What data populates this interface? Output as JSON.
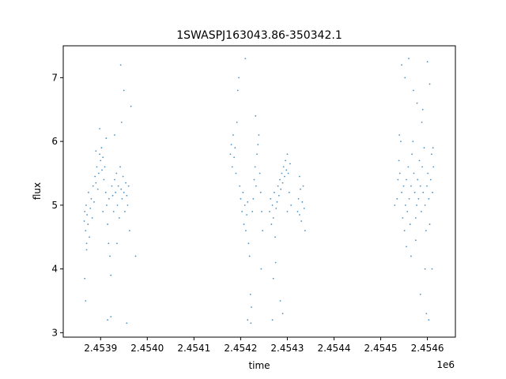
{
  "chart_data": {
    "type": "scatter",
    "title": "1SWASPJ163043.86-350342.1",
    "xlabel": "time",
    "ylabel": "flux",
    "x_offset_label": "1e6",
    "x_scale": 1000000,
    "xlim": [
      2453820,
      2454660
    ],
    "ylim": [
      2.93,
      7.5
    ],
    "xticks": [
      2453900,
      2454000,
      2454100,
      2454200,
      2454300,
      2454400,
      2454500,
      2454600
    ],
    "xtick_labels": [
      "2.4539",
      "2.4540",
      "2.4541",
      "2.4542",
      "2.4543",
      "2.4544",
      "2.4545",
      "2.4546"
    ],
    "yticks": [
      3,
      4,
      5,
      6,
      7
    ],
    "ytick_labels": [
      "3",
      "4",
      "5",
      "6",
      "7"
    ],
    "grid": false,
    "legend": "none",
    "point_color": "#1f77b4",
    "points": [
      [
        2453865,
        4.75
      ],
      [
        2453866,
        4.9
      ],
      [
        2453868,
        4.6
      ],
      [
        2453869,
        5.0
      ],
      [
        2453870,
        4.4
      ],
      [
        2453871,
        4.85
      ],
      [
        2453873,
        4.7
      ],
      [
        2453874,
        5.2
      ],
      [
        2453876,
        4.5
      ],
      [
        2453878,
        4.95
      ],
      [
        2453880,
        5.1
      ],
      [
        2453882,
        4.8
      ],
      [
        2453884,
        5.3
      ],
      [
        2453886,
        5.05
      ],
      [
        2453888,
        5.45
      ],
      [
        2453890,
        5.35
      ],
      [
        2453892,
        5.6
      ],
      [
        2453894,
        5.25
      ],
      [
        2453896,
        5.5
      ],
      [
        2453898,
        5.8
      ],
      [
        2453900,
        5.7
      ],
      [
        2453902,
        5.9
      ],
      [
        2453903,
        5.55
      ],
      [
        2453905,
        5.75
      ],
      [
        2453907,
        5.4
      ],
      [
        2453909,
        5.6
      ],
      [
        2453911,
        5.2
      ],
      [
        2453913,
        5.0
      ],
      [
        2453915,
        4.7
      ],
      [
        2453917,
        4.4
      ],
      [
        2453918,
        5.1
      ],
      [
        2453920,
        4.2
      ],
      [
        2453922,
        3.9
      ],
      [
        2453924,
        5.3
      ],
      [
        2453926,
        5.15
      ],
      [
        2453928,
        4.9
      ],
      [
        2453930,
        5.4
      ],
      [
        2453932,
        5.2
      ],
      [
        2453934,
        5.5
      ],
      [
        2453936,
        5.0
      ],
      [
        2453938,
        5.3
      ],
      [
        2453940,
        4.8
      ],
      [
        2453942,
        5.6
      ],
      [
        2453944,
        5.25
      ],
      [
        2453946,
        5.1
      ],
      [
        2453948,
        5.45
      ],
      [
        2453950,
        5.2
      ],
      [
        2453952,
        4.9
      ],
      [
        2453954,
        5.35
      ],
      [
        2453956,
        5.15
      ],
      [
        2453958,
        5.0
      ],
      [
        2453960,
        5.3
      ],
      [
        2453962,
        4.6
      ],
      [
        2453945,
        6.3
      ],
      [
        2453912,
        6.05
      ],
      [
        2453898,
        6.2
      ],
      [
        2453930,
        6.1
      ],
      [
        2453943,
        7.2
      ],
      [
        2453950,
        6.8
      ],
      [
        2453922,
        3.25
      ],
      [
        2453915,
        3.2
      ],
      [
        2453935,
        4.4
      ],
      [
        2453905,
        4.9
      ],
      [
        2453890,
        5.85
      ],
      [
        2453870,
        4.3
      ],
      [
        2453868,
        3.5
      ],
      [
        2453866,
        3.85
      ],
      [
        2453956,
        3.15
      ],
      [
        2453965,
        6.55
      ],
      [
        2453975,
        4.2
      ],
      [
        2454178,
        5.8
      ],
      [
        2454180,
        5.95
      ],
      [
        2454182,
        5.6
      ],
      [
        2454184,
        6.1
      ],
      [
        2454186,
        5.75
      ],
      [
        2454188,
        5.9
      ],
      [
        2454190,
        5.5
      ],
      [
        2454192,
        6.3
      ],
      [
        2454194,
        6.8
      ],
      [
        2454196,
        7.0
      ],
      [
        2454198,
        5.3
      ],
      [
        2454200,
        5.1
      ],
      [
        2454203,
        4.9
      ],
      [
        2454205,
        5.2
      ],
      [
        2454207,
        4.7
      ],
      [
        2454209,
        5.0
      ],
      [
        2454211,
        4.6
      ],
      [
        2454213,
        4.85
      ],
      [
        2454215,
        5.05
      ],
      [
        2454217,
        4.4
      ],
      [
        2454219,
        4.2
      ],
      [
        2454221,
        3.6
      ],
      [
        2454223,
        3.4
      ],
      [
        2454225,
        4.9
      ],
      [
        2454227,
        5.1
      ],
      [
        2454229,
        5.4
      ],
      [
        2454231,
        5.6
      ],
      [
        2454233,
        5.3
      ],
      [
        2454235,
        5.8
      ],
      [
        2454237,
        5.95
      ],
      [
        2454239,
        6.1
      ],
      [
        2454241,
        5.5
      ],
      [
        2454243,
        5.2
      ],
      [
        2454245,
        4.9
      ],
      [
        2454247,
        4.6
      ],
      [
        2454210,
        7.3
      ],
      [
        2454232,
        6.4
      ],
      [
        2454215,
        3.2
      ],
      [
        2454222,
        3.15
      ],
      [
        2454244,
        4.0
      ],
      [
        2454262,
        4.9
      ],
      [
        2454264,
        5.1
      ],
      [
        2454266,
        4.7
      ],
      [
        2454268,
        5.0
      ],
      [
        2454270,
        4.8
      ],
      [
        2454272,
        5.2
      ],
      [
        2454274,
        4.5
      ],
      [
        2454276,
        4.95
      ],
      [
        2454278,
        5.05
      ],
      [
        2454280,
        5.3
      ],
      [
        2454282,
        5.15
      ],
      [
        2454284,
        5.4
      ],
      [
        2454286,
        5.25
      ],
      [
        2454288,
        5.5
      ],
      [
        2454290,
        5.35
      ],
      [
        2454292,
        5.6
      ],
      [
        2454294,
        5.45
      ],
      [
        2454296,
        5.7
      ],
      [
        2454298,
        5.55
      ],
      [
        2454300,
        5.8
      ],
      [
        2454302,
        5.5
      ],
      [
        2454304,
        5.2
      ],
      [
        2454306,
        5.65
      ],
      [
        2454270,
        3.85
      ],
      [
        2454275,
        4.1
      ],
      [
        2454285,
        3.5
      ],
      [
        2454290,
        3.3
      ],
      [
        2454268,
        3.2
      ],
      [
        2454300,
        4.9
      ],
      [
        2454308,
        5.0
      ],
      [
        2454322,
        4.9
      ],
      [
        2454324,
        5.1
      ],
      [
        2454326,
        4.85
      ],
      [
        2454328,
        5.25
      ],
      [
        2454330,
        4.75
      ],
      [
        2454332,
        5.05
      ],
      [
        2454334,
        5.3
      ],
      [
        2454336,
        4.95
      ],
      [
        2454338,
        4.6
      ],
      [
        2454326,
        5.45
      ],
      [
        2454535,
        5.1
      ],
      [
        2454537,
        5.4
      ],
      [
        2454539,
        5.7
      ],
      [
        2454541,
        5.5
      ],
      [
        2454543,
        6.0
      ],
      [
        2454545,
        5.2
      ],
      [
        2454547,
        4.8
      ],
      [
        2454549,
        5.3
      ],
      [
        2454551,
        4.6
      ],
      [
        2454553,
        5.0
      ],
      [
        2454555,
        5.4
      ],
      [
        2454557,
        4.9
      ],
      [
        2454559,
        5.6
      ],
      [
        2454561,
        5.1
      ],
      [
        2454563,
        4.7
      ],
      [
        2454565,
        5.3
      ],
      [
        2454567,
        5.8
      ],
      [
        2454569,
        6.0
      ],
      [
        2454571,
        5.5
      ],
      [
        2454573,
        5.2
      ],
      [
        2454575,
        4.8
      ],
      [
        2454577,
        5.0
      ],
      [
        2454579,
        5.4
      ],
      [
        2454581,
        5.1
      ],
      [
        2454583,
        5.7
      ],
      [
        2454585,
        5.3
      ],
      [
        2454587,
        4.9
      ],
      [
        2454589,
        5.6
      ],
      [
        2454591,
        5.2
      ],
      [
        2454593,
        5.9
      ],
      [
        2454595,
        5.0
      ],
      [
        2454597,
        4.6
      ],
      [
        2454599,
        5.3
      ],
      [
        2454601,
        5.5
      ],
      [
        2454603,
        5.1
      ],
      [
        2454605,
        4.7
      ],
      [
        2454607,
        5.4
      ],
      [
        2454609,
        5.8
      ],
      [
        2454611,
        5.2
      ],
      [
        2454613,
        5.6
      ],
      [
        2454545,
        7.2
      ],
      [
        2454552,
        7.0
      ],
      [
        2454560,
        7.3
      ],
      [
        2454570,
        6.8
      ],
      [
        2454578,
        6.6
      ],
      [
        2454590,
        6.5
      ],
      [
        2454600,
        7.25
      ],
      [
        2454605,
        6.9
      ],
      [
        2454598,
        3.3
      ],
      [
        2454603,
        3.2
      ],
      [
        2454585,
        3.6
      ],
      [
        2454595,
        4.0
      ],
      [
        2454565,
        4.2
      ],
      [
        2454555,
        4.35
      ],
      [
        2454575,
        4.45
      ],
      [
        2454610,
        4.0
      ],
      [
        2454612,
        5.9
      ],
      [
        2454540,
        6.1
      ],
      [
        2454530,
        5.0
      ],
      [
        2454588,
        6.3
      ]
    ]
  }
}
